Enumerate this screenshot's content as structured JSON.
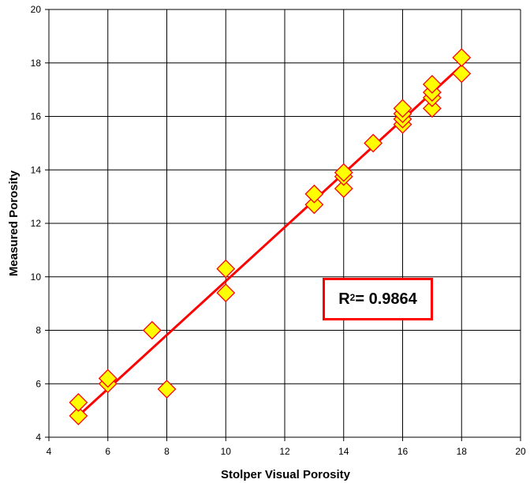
{
  "chart_data": {
    "type": "scatter",
    "xlabel": "Stolper Visual Porosity",
    "ylabel": "Measured Porosity",
    "xlim": [
      4,
      20
    ],
    "ylim": [
      4,
      20
    ],
    "xticks": [
      "4",
      "6",
      "8",
      "10",
      "12",
      "14",
      "16",
      "18",
      "20"
    ],
    "yticks": [
      "4",
      "6",
      "8",
      "10",
      "12",
      "14",
      "16",
      "18",
      "20"
    ],
    "grid": true,
    "points": [
      {
        "x": 5,
        "y": 4.8
      },
      {
        "x": 5,
        "y": 5.3
      },
      {
        "x": 6,
        "y": 6.0
      },
      {
        "x": 6,
        "y": 6.2
      },
      {
        "x": 7.5,
        "y": 8.0
      },
      {
        "x": 8,
        "y": 5.8
      },
      {
        "x": 10,
        "y": 9.4
      },
      {
        "x": 10,
        "y": 10.3
      },
      {
        "x": 13,
        "y": 12.7
      },
      {
        "x": 13,
        "y": 13.1
      },
      {
        "x": 14,
        "y": 13.3
      },
      {
        "x": 14,
        "y": 13.75
      },
      {
        "x": 14,
        "y": 13.9
      },
      {
        "x": 15,
        "y": 15.0
      },
      {
        "x": 16,
        "y": 15.7
      },
      {
        "x": 16,
        "y": 15.9
      },
      {
        "x": 16,
        "y": 16.1
      },
      {
        "x": 16,
        "y": 16.3
      },
      {
        "x": 17,
        "y": 16.3
      },
      {
        "x": 17,
        "y": 16.7
      },
      {
        "x": 17,
        "y": 16.9
      },
      {
        "x": 17,
        "y": 17.2
      },
      {
        "x": 18,
        "y": 17.6
      },
      {
        "x": 18,
        "y": 18.2
      }
    ],
    "trendline": {
      "x": [
        5,
        18
      ],
      "y": [
        4.8,
        17.9
      ]
    },
    "annotation": {
      "r_label": "R",
      "r_exp": "2",
      "r_value": " = 0.9864"
    },
    "colors": {
      "marker_fill": "#ffff00",
      "marker_stroke": "#ff0000",
      "trendline": "#ff0000",
      "grid": "#000000"
    }
  }
}
